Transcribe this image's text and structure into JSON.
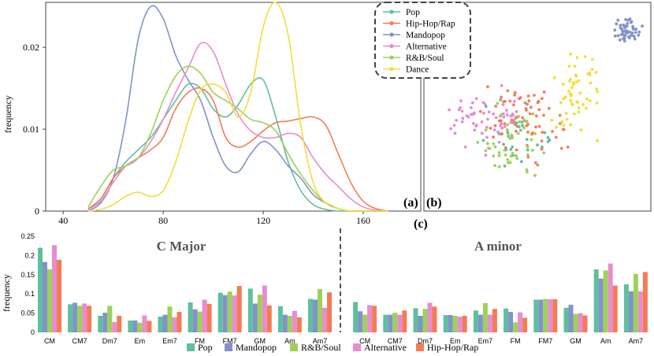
{
  "colors": {
    "Pop": "#5fbf9f",
    "Hip-Hop/Rap": "#f47c55",
    "Mandopop": "#8193c9",
    "Alternative": "#e88cd0",
    "R&B/Soul": "#9dd15a",
    "Dance": "#f5dc3c"
  },
  "panel_labels": {
    "a": "(a)",
    "b": "(b)",
    "c": "(c)"
  },
  "chart_data": [
    {
      "id": "a",
      "type": "line",
      "title": "",
      "xlabel": "",
      "ylabel": "frequency",
      "xlim": [
        33,
        183
      ],
      "ylim": [
        0,
        0.0255
      ],
      "xticks": [
        40,
        80,
        120,
        160
      ],
      "xtick_labels": [
        "40",
        "80",
        "120",
        "160"
      ],
      "yticks": [
        0,
        0.01,
        0.02
      ],
      "ytick_labels": [
        "0",
        "0.01",
        "0.02"
      ],
      "x": [
        50,
        55,
        60,
        65,
        70,
        75,
        80,
        85,
        90,
        95,
        100,
        105,
        110,
        115,
        120,
        125,
        130,
        135,
        140,
        145,
        150,
        155,
        160,
        165,
        170
      ],
      "series": [
        {
          "name": "Mandopop",
          "values": [
            0.0,
            0.001,
            0.004,
            0.011,
            0.021,
            0.025,
            0.0235,
            0.019,
            0.016,
            0.0135,
            0.009,
            0.0055,
            0.0048,
            0.007,
            0.0085,
            0.0075,
            0.0055,
            0.004,
            0.002,
            0.001,
            0.0003,
            0.0,
            0.0,
            0.0,
            0.0
          ]
        },
        {
          "name": "Pop",
          "values": [
            0.0002,
            0.0015,
            0.004,
            0.006,
            0.0075,
            0.009,
            0.0112,
            0.0135,
            0.0155,
            0.015,
            0.0125,
            0.0115,
            0.013,
            0.0155,
            0.016,
            0.0115,
            0.006,
            0.0025,
            0.0008,
            0.0002,
            0.0,
            0.0,
            0.0,
            0.0,
            0.0
          ]
        },
        {
          "name": "Hip-Hop/Rap",
          "values": [
            0.0003,
            0.0015,
            0.004,
            0.0055,
            0.0065,
            0.0075,
            0.009,
            0.0125,
            0.0145,
            0.015,
            0.0135,
            0.009,
            0.0078,
            0.0085,
            0.0098,
            0.0108,
            0.011,
            0.0113,
            0.0115,
            0.0105,
            0.007,
            0.0035,
            0.0012,
            0.0003,
            0.0
          ]
        },
        {
          "name": "Alternative",
          "values": [
            0.0002,
            0.0012,
            0.0035,
            0.0055,
            0.0065,
            0.0085,
            0.0112,
            0.0145,
            0.0175,
            0.0205,
            0.0195,
            0.0155,
            0.0118,
            0.0098,
            0.009,
            0.009,
            0.0095,
            0.009,
            0.0065,
            0.0045,
            0.003,
            0.0015,
            0.0005,
            0.0001,
            0.0
          ]
        },
        {
          "name": "R&B/Soul",
          "values": [
            0.0005,
            0.003,
            0.005,
            0.0055,
            0.0065,
            0.0095,
            0.0135,
            0.0165,
            0.0177,
            0.0168,
            0.0145,
            0.0135,
            0.0125,
            0.0112,
            0.0108,
            0.0098,
            0.007,
            0.0045,
            0.0025,
            0.001,
            0.0003,
            0.0,
            0.0,
            0.0,
            0.0
          ]
        },
        {
          "name": "Dance",
          "values": [
            0.0,
            0.0002,
            0.0008,
            0.0018,
            0.0023,
            0.0018,
            0.0025,
            0.006,
            0.011,
            0.0148,
            0.0155,
            0.0145,
            0.0115,
            0.0145,
            0.0225,
            0.0255,
            0.0215,
            0.0105,
            0.0035,
            0.001,
            0.0003,
            0.0,
            0.0,
            0.0,
            0.0
          ]
        }
      ]
    },
    {
      "id": "b",
      "type": "scatter",
      "title": "",
      "xlabel": "",
      "ylabel": "",
      "legend_position": "top-left",
      "legend": [
        "Pop",
        "Hip-Hop/Rap",
        "Mandopop",
        "Alternative",
        "R&B/Soul",
        "Dance"
      ],
      "points_per_group": {
        "Pop": 30,
        "Hip-Hop/Rap": 70,
        "Mandopop": 52,
        "Alternative": 60,
        "R&B/Soul": 45,
        "Dance": 55
      }
    },
    {
      "id": "c",
      "type": "bar",
      "title": "",
      "ylabel": "frequency",
      "ylim": [
        0,
        0.25
      ],
      "yticks": [
        0,
        0.05,
        0.1,
        0.15,
        0.2,
        0.25
      ],
      "ytick_labels": [
        "0",
        "0.05",
        "0.1",
        "0.15",
        "0.2",
        "0.25"
      ],
      "legend": [
        "Pop",
        "Mandopop",
        "R&B/Soul",
        "Alternative",
        "Hip-Hop/Rap"
      ],
      "groups": [
        {
          "title": "C Major",
          "categories": [
            "CM",
            "CM7",
            "Dm7",
            "Em",
            "Em7",
            "FM",
            "FM7",
            "GM",
            "Am",
            "Am7"
          ],
          "series": [
            {
              "name": "Pop",
              "values": [
                0.22,
                0.073,
                0.043,
                0.031,
                0.041,
                0.078,
                0.103,
                0.114,
                0.068,
                0.087
              ]
            },
            {
              "name": "Mandopop",
              "values": [
                0.183,
                0.077,
                0.051,
                0.031,
                0.046,
                0.06,
                0.097,
                0.075,
                0.046,
                0.085
              ]
            },
            {
              "name": "R&B/Soul",
              "values": [
                0.164,
                0.069,
                0.069,
                0.025,
                0.067,
                0.054,
                0.106,
                0.098,
                0.043,
                0.113
              ]
            },
            {
              "name": "Alternative",
              "values": [
                0.227,
                0.075,
                0.027,
                0.044,
                0.039,
                0.085,
                0.096,
                0.122,
                0.056,
                0.064
              ]
            },
            {
              "name": "Hip-Hop/Rap",
              "values": [
                0.189,
                0.069,
                0.043,
                0.03,
                0.053,
                0.074,
                0.121,
                0.07,
                0.039,
                0.104
              ]
            }
          ]
        },
        {
          "title": "A minor",
          "categories": [
            "CM",
            "CM7",
            "Dm7",
            "Em",
            "Em7",
            "FM",
            "FM7",
            "GM",
            "Am",
            "Am7"
          ],
          "series": [
            {
              "name": "Pop",
              "values": [
                0.079,
                0.046,
                0.063,
                0.045,
                0.057,
                0.062,
                0.085,
                0.064,
                0.164,
                0.125
              ]
            },
            {
              "name": "Mandopop",
              "values": [
                0.055,
                0.046,
                0.043,
                0.045,
                0.046,
                0.053,
                0.085,
                0.072,
                0.14,
                0.107
              ]
            },
            {
              "name": "R&B/Soul",
              "values": [
                0.046,
                0.051,
                0.061,
                0.043,
                0.076,
                0.026,
                0.087,
                0.048,
                0.161,
                0.152
              ]
            },
            {
              "name": "Alternative",
              "values": [
                0.071,
                0.046,
                0.077,
                0.041,
                0.046,
                0.052,
                0.086,
                0.05,
                0.179,
                0.107
              ]
            },
            {
              "name": "Hip-Hop/Rap",
              "values": [
                0.069,
                0.057,
                0.067,
                0.043,
                0.061,
                0.038,
                0.086,
                0.044,
                0.122,
                0.157
              ]
            }
          ]
        }
      ]
    }
  ]
}
